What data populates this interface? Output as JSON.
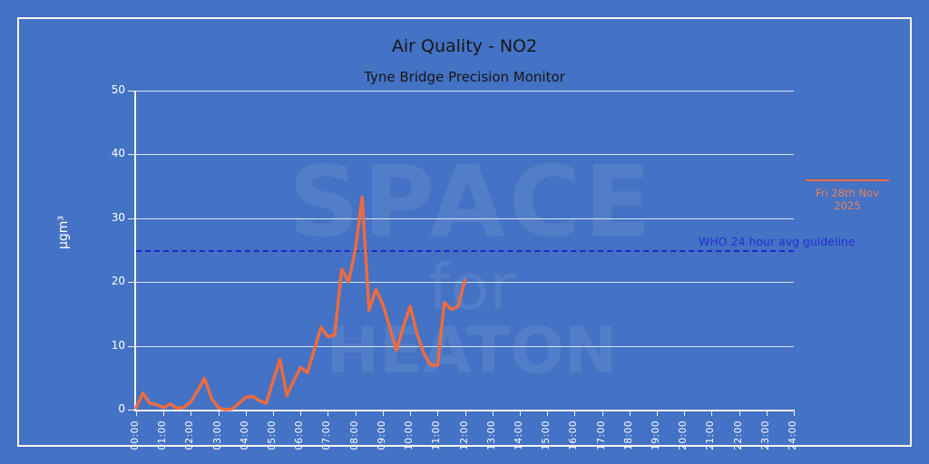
{
  "title": "Air Quality - NO2",
  "subtitle": "Tyne Bridge Precision Monitor",
  "watermark": {
    "line1": "SPACE",
    "line2_a": "for",
    "line2_b": "HEATON"
  },
  "legend": {
    "label": "Fri 28th Nov 2025"
  },
  "guideline_label": "WHO 24 hour avg guideline",
  "colors": {
    "background": "#4472C4",
    "frame": "#f5f5ee",
    "axis": "#f2f2f2",
    "grid": "rgba(255,255,255,0.8)",
    "series": "#ED6B40",
    "legend_text": "#e8835d",
    "guideline": "#2127ce",
    "title_text": "#161616",
    "tick_text": "#ffffff"
  },
  "chart_data": {
    "type": "line",
    "title": "Air Quality - NO2",
    "subtitle": "Tyne Bridge Precision Monitor",
    "ylabel": "µgm³",
    "xlabel": "",
    "ylim": [
      0,
      50
    ],
    "xlim_hours": [
      0,
      24
    ],
    "grid": "horizontal-only",
    "legend_position": "right-outside",
    "y_ticks": [
      0,
      10,
      20,
      30,
      40,
      50
    ],
    "x_tick_labels": [
      "00:00",
      "01:00",
      "02:00",
      "03:00",
      "04:00",
      "05:00",
      "06:00",
      "07:00",
      "08:00",
      "09:00",
      "10:00",
      "11:00",
      "12:00",
      "13:00",
      "14:00",
      "15:00",
      "16:00",
      "17:00",
      "18:00",
      "19:00",
      "20:00",
      "21:00",
      "22:00",
      "23:00",
      "24:00"
    ],
    "guideline": {
      "label": "WHO 24 hour avg guideline",
      "value": 25
    },
    "x_times": [
      "00:00",
      "00:15",
      "00:30",
      "00:45",
      "01:00",
      "01:15",
      "01:30",
      "01:45",
      "02:00",
      "02:15",
      "02:30",
      "02:45",
      "03:00",
      "03:15",
      "03:30",
      "03:45",
      "04:00",
      "04:15",
      "04:30",
      "04:45",
      "05:00",
      "05:15",
      "05:30",
      "05:45",
      "06:00",
      "06:15",
      "06:30",
      "06:45",
      "07:00",
      "07:15",
      "07:30",
      "07:45",
      "08:00",
      "08:15",
      "08:30",
      "08:45",
      "09:00",
      "09:15",
      "09:30",
      "09:45",
      "10:00",
      "10:15",
      "10:30",
      "10:45",
      "11:00",
      "11:15",
      "11:30",
      "11:45",
      "12:00"
    ],
    "series": [
      {
        "name": "Fri 28th Nov 2025",
        "values": [
          0.3,
          2.6,
          1.0,
          0.8,
          0.3,
          0.9,
          0.2,
          0.4,
          1.2,
          3.0,
          4.9,
          1.8,
          0.3,
          0.0,
          0.1,
          1.0,
          1.9,
          2.1,
          1.4,
          1.0,
          4.5,
          7.9,
          2.2,
          4.5,
          6.6,
          5.8,
          9.4,
          12.9,
          11.4,
          11.7,
          22.0,
          20.0,
          25.0,
          33.3,
          15.6,
          18.8,
          16.5,
          13.0,
          9.3,
          13.0,
          16.2,
          12.0,
          8.8,
          7.0,
          6.9,
          16.8,
          15.7,
          16.2,
          20.3
        ]
      }
    ]
  }
}
